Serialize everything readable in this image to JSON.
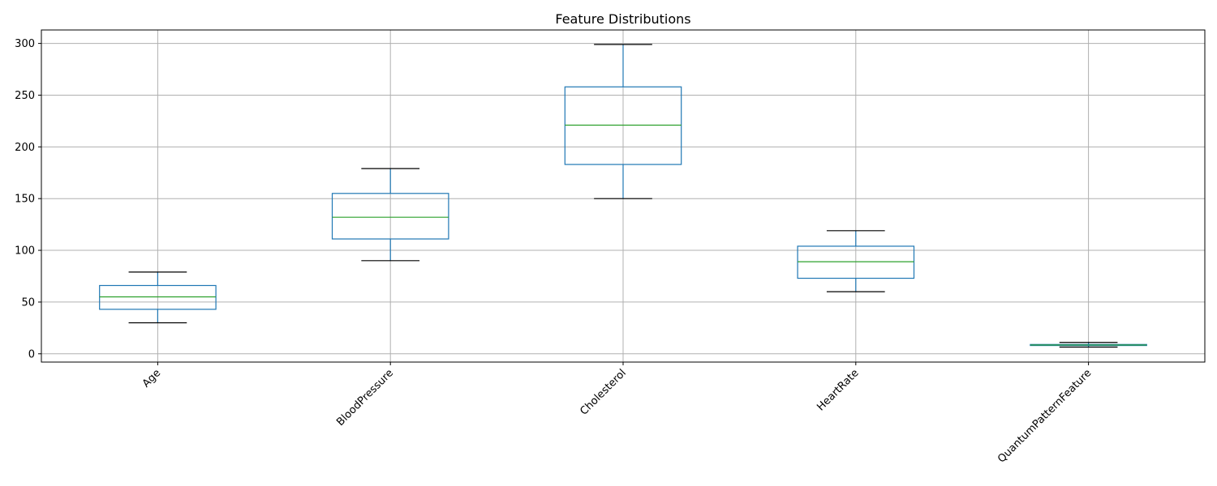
{
  "chart_data": {
    "type": "box",
    "title": "Feature Distributions",
    "xlabel": "",
    "ylabel": "",
    "ylim": [
      -8,
      313
    ],
    "yticks": [
      0,
      50,
      100,
      150,
      200,
      250,
      300
    ],
    "grid": true,
    "categories": [
      "Age",
      "BloodPressure",
      "Cholesterol",
      "HeartRate",
      "QuantumPatternFeature"
    ],
    "boxes": [
      {
        "min": 30,
        "q1": 43,
        "median": 55,
        "q3": 66,
        "max": 79
      },
      {
        "min": 90,
        "q1": 111,
        "median": 132,
        "q3": 155,
        "max": 179
      },
      {
        "min": 150,
        "q1": 183,
        "median": 221,
        "q3": 258,
        "max": 299
      },
      {
        "min": 60,
        "q1": 73,
        "median": 89,
        "q3": 104,
        "max": 119
      },
      {
        "min": 6.5,
        "q1": 8,
        "median": 8.5,
        "q3": 9,
        "max": 11
      }
    ],
    "colors": {
      "box": "#1f77b4",
      "median": "#2ca02c",
      "cap": "#000000",
      "grid": "#b0b0b0"
    }
  }
}
